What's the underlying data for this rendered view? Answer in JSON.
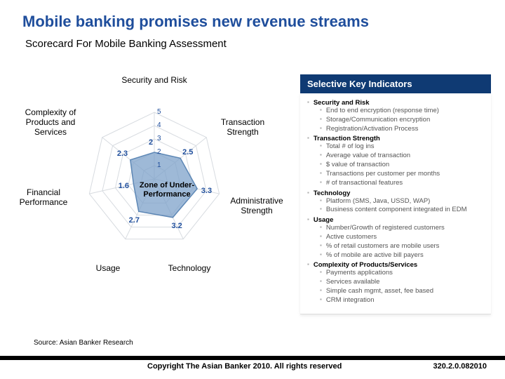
{
  "title": "Mobile banking promises new revenue streams",
  "subtitle": "Scorecard  For Mobile Banking Assessment",
  "source": "Source: Asian Banker Research",
  "footer": {
    "copyright": "Copyright The Asian Banker 2010. All rights reserved",
    "code": "320.2.0.082010"
  },
  "radar": {
    "type": "radar",
    "max": 5,
    "ticks": [
      1,
      2,
      3,
      4,
      5
    ],
    "axes": [
      "Security and Risk",
      "Transaction Strength",
      "Administrative Strength",
      "Technology",
      "Usage",
      "Financial Performance",
      "Complexity of Products and Services"
    ],
    "values": [
      2.0,
      2.5,
      3.3,
      3.2,
      2.7,
      1.6,
      2.3
    ],
    "zone_label": "Zone of Under-Performance",
    "grid_color": "#d7dbe0",
    "fill_color": "#7da2c9",
    "fill_opacity": 0.75,
    "stroke_color": "#5d87b5",
    "value_color": "#1f4e9c",
    "background_color": "#ffffff",
    "axis_label_fontsize": 12,
    "tick_fontsize": 10,
    "value_fontsize": 11
  },
  "indicators": {
    "header": "Selective Key Indicators",
    "groups": [
      {
        "name": "Security and Risk",
        "items": [
          "End to end encryption (response time)",
          "Storage/Communication encryption",
          "Registration/Activation Process"
        ]
      },
      {
        "name": "Transaction Strength",
        "items": [
          "Total # of log ins",
          "Average value of transaction",
          "$ value of transaction",
          "Transactions per customer per months",
          "# of transactional features"
        ]
      },
      {
        "name": "Technology",
        "items": [
          "Platform (SMS, Java, USSD, WAP)",
          "Business content component integrated in EDM"
        ]
      },
      {
        "name": "Usage",
        "items": [
          "Number/Growth of registered customers",
          "Active customers",
          "% of retail customers are mobile users",
          "% of mobile are active bill payers"
        ]
      },
      {
        "name": "Complexity of Products/Services",
        "items": [
          "Payments applications",
          "Services available",
          "Simple cash mgmt, asset, fee based",
          "CRM integration"
        ]
      }
    ]
  }
}
